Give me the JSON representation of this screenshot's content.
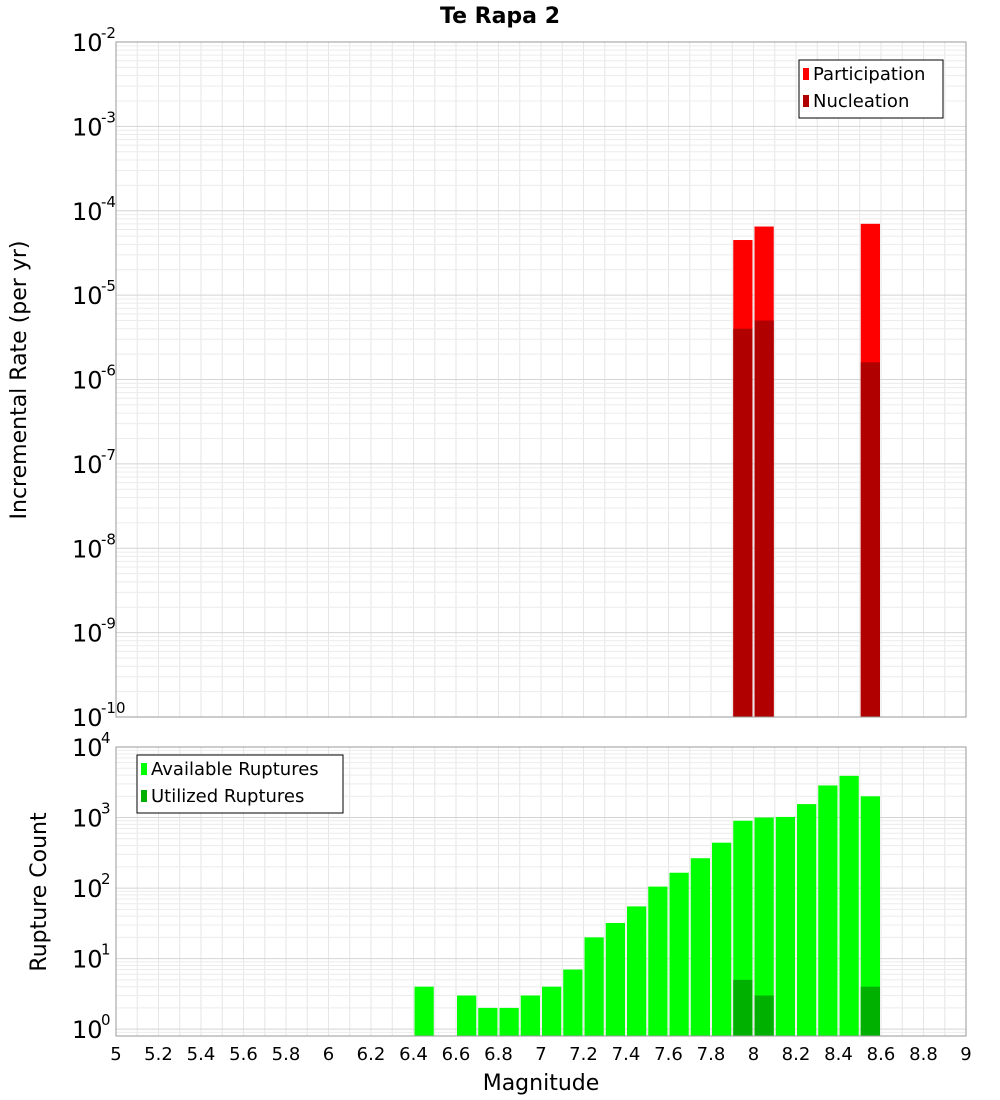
{
  "chart_data": [
    {
      "type": "bar",
      "title": "Te Rapa 2",
      "xlabel": "",
      "ylabel": "Incremental Rate (per yr)",
      "yscale": "log",
      "xlim": [
        5,
        9
      ],
      "ylim": [
        1e-10,
        0.01
      ],
      "bin_width": 0.1,
      "y_ticks": [
        {
          "base": "10",
          "exp": "-10",
          "value": 1e-10
        },
        {
          "base": "10",
          "exp": "-9",
          "value": 1e-09
        },
        {
          "base": "10",
          "exp": "-8",
          "value": 1e-08
        },
        {
          "base": "10",
          "exp": "-7",
          "value": 1e-07
        },
        {
          "base": "10",
          "exp": "-6",
          "value": 1e-06
        },
        {
          "base": "10",
          "exp": "-5",
          "value": 1e-05
        },
        {
          "base": "10",
          "exp": "-4",
          "value": 0.0001
        },
        {
          "base": "10",
          "exp": "-3",
          "value": 0.001
        },
        {
          "base": "10",
          "exp": "-2",
          "value": 0.01
        }
      ],
      "legend": {
        "position": "top-right"
      },
      "grid": true,
      "series": [
        {
          "name": "Participation",
          "color": "#ff0000",
          "points": [
            {
              "x": 7.95,
              "y": 4.5e-05
            },
            {
              "x": 8.05,
              "y": 6.5e-05
            },
            {
              "x": 8.55,
              "y": 7e-05
            }
          ]
        },
        {
          "name": "Nucleation",
          "color": "#b00000",
          "points": [
            {
              "x": 7.95,
              "y": 4e-06
            },
            {
              "x": 8.05,
              "y": 5e-06
            },
            {
              "x": 8.55,
              "y": 1.6e-06
            }
          ]
        }
      ]
    },
    {
      "type": "bar",
      "title": "",
      "xlabel": "Magnitude",
      "ylabel": "Rupture Count",
      "yscale": "log",
      "xlim": [
        5,
        9
      ],
      "ylim": [
        0.8,
        10000
      ],
      "bin_width": 0.1,
      "x_ticks": [
        "5",
        "5.2",
        "5.4",
        "5.6",
        "5.8",
        "6",
        "6.2",
        "6.4",
        "6.6",
        "6.8",
        "7",
        "7.2",
        "7.4",
        "7.6",
        "7.8",
        "8",
        "8.2",
        "8.4",
        "8.6",
        "8.8",
        "9"
      ],
      "y_ticks": [
        {
          "base": "10",
          "exp": "0",
          "value": 1
        },
        {
          "base": "10",
          "exp": "1",
          "value": 10
        },
        {
          "base": "10",
          "exp": "2",
          "value": 100
        },
        {
          "base": "10",
          "exp": "3",
          "value": 1000
        },
        {
          "base": "10",
          "exp": "4",
          "value": 10000
        }
      ],
      "legend": {
        "position": "top-left"
      },
      "grid": true,
      "series": [
        {
          "name": "Available Ruptures",
          "color": "#00ff00",
          "points": [
            {
              "x": 6.45,
              "y": 4
            },
            {
              "x": 6.65,
              "y": 3
            },
            {
              "x": 6.75,
              "y": 2
            },
            {
              "x": 6.85,
              "y": 2
            },
            {
              "x": 6.95,
              "y": 3
            },
            {
              "x": 7.05,
              "y": 4
            },
            {
              "x": 7.15,
              "y": 7
            },
            {
              "x": 7.25,
              "y": 20
            },
            {
              "x": 7.35,
              "y": 32
            },
            {
              "x": 7.45,
              "y": 55
            },
            {
              "x": 7.55,
              "y": 105
            },
            {
              "x": 7.65,
              "y": 165
            },
            {
              "x": 7.75,
              "y": 265
            },
            {
              "x": 7.85,
              "y": 440
            },
            {
              "x": 7.95,
              "y": 900
            },
            {
              "x": 8.05,
              "y": 1000
            },
            {
              "x": 8.15,
              "y": 1020
            },
            {
              "x": 8.25,
              "y": 1550
            },
            {
              "x": 8.35,
              "y": 2850
            },
            {
              "x": 8.45,
              "y": 3900
            },
            {
              "x": 8.55,
              "y": 2000
            }
          ]
        },
        {
          "name": "Utilized Ruptures",
          "color": "#00b000",
          "points": [
            {
              "x": 7.95,
              "y": 5
            },
            {
              "x": 8.05,
              "y": 3
            },
            {
              "x": 8.55,
              "y": 4
            }
          ]
        }
      ]
    }
  ]
}
